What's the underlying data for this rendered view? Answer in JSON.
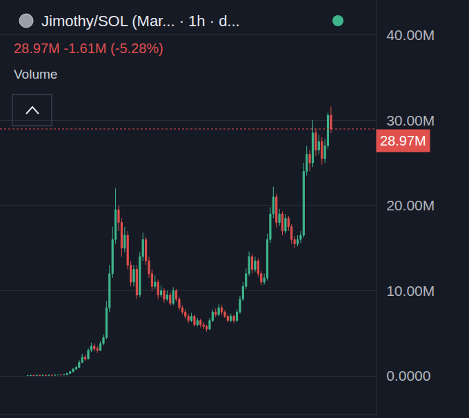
{
  "chart_data": {
    "type": "candlestick",
    "title": "Jimothy/SOL (Mar... · 1h · d...",
    "subtitle": "28.97M -1.61M (-5.28%)",
    "annotations": [
      "Volume"
    ],
    "last_price": {
      "value": 28970000.0,
      "label": "28.97M"
    },
    "color": {
      "up": "#3fb68b",
      "down": "#e0504d"
    },
    "grid": true,
    "tick_labels": "y",
    "x": [
      0,
      1,
      2,
      3,
      4,
      5,
      6,
      7,
      8,
      9,
      10,
      11,
      12,
      13,
      14,
      15,
      16,
      17,
      18,
      19,
      20,
      21,
      22,
      23,
      24,
      25,
      26,
      27,
      28,
      29,
      30,
      31,
      32,
      33,
      34,
      35,
      36,
      37,
      38,
      39,
      40,
      41,
      42,
      43,
      44,
      45,
      46,
      47,
      48,
      49,
      50,
      51,
      52,
      53,
      54,
      55,
      56,
      57,
      58,
      59,
      60,
      61,
      62,
      63,
      64,
      65,
      66,
      67,
      68,
      69,
      70,
      71,
      72,
      73,
      74,
      75,
      76,
      77,
      78,
      79,
      80,
      81,
      82,
      83,
      84,
      85,
      86,
      87,
      88,
      89,
      90,
      91,
      92,
      93,
      94,
      95,
      96,
      97,
      98,
      99,
      100
    ],
    "open": [
      40000.0,
      50000.0,
      60000.0,
      50000.0,
      70000.0,
      60000.0,
      80000.0,
      70000.0,
      90000.0,
      80000.0,
      100000.0,
      120000.0,
      110000.0,
      150000.0,
      300000.0,
      500000.0,
      800000.0,
      1000000.0,
      1600000.0,
      2200000.0,
      2000000.0,
      3000000.0,
      3500000.0,
      3200000.0,
      3000000.0,
      3800000.0,
      4500000.0,
      8000000.0,
      12000000.0,
      16000000.0,
      19500000.0,
      18000000.0,
      15000000.0,
      16500000.0,
      13000000.0,
      11000000.0,
      12500000.0,
      9500000.0,
      14000000.0,
      16000000.0,
      13500000.0,
      12000000.0,
      10500000.0,
      11000000.0,
      9500000.0,
      10000000.0,
      9000000.0,
      9500000.0,
      8500000.0,
      10000000.0,
      9000000.0,
      8000000.0,
      7500000.0,
      7000000.0,
      6500000.0,
      7000000.0,
      6000000.0,
      6500000.0,
      6000000.0,
      5800000.0,
      5500000.0,
      6500000.0,
      7500000.0,
      7200000.0,
      8000000.0,
      7500000.0,
      7000000.0,
      6500000.0,
      7000000.0,
      6500000.0,
      7500000.0,
      9000000.0,
      10500000.0,
      12000000.0,
      14000000.0,
      12500000.0,
      13500000.0,
      12000000.0,
      11000000.0,
      11500000.0,
      16000000.0,
      19000000.0,
      21000000.0,
      18000000.0,
      19000000.0,
      17000000.0,
      18500000.0,
      17500000.0,
      16000000.0,
      15500000.0,
      16000000.0,
      16500000.0,
      24000000.0,
      26000000.0,
      25000000.0,
      28500000.0,
      26500000.0,
      27500000.0,
      25500000.0,
      27000000.0,
      30580000.0
    ],
    "high": [
      60000.0,
      70000.0,
      70000.0,
      80000.0,
      80000.0,
      90000.0,
      90000.0,
      100000.0,
      100000.0,
      110000.0,
      130000.0,
      140000.0,
      170000.0,
      350000.0,
      600000.0,
      900000.0,
      1200000.0,
      1900000.0,
      2600000.0,
      2500000.0,
      3300000.0,
      3900000.0,
      3800000.0,
      3500000.0,
      4100000.0,
      4900000.0,
      8800000.0,
      13000000.0,
      17500000.0,
      22000000.0,
      20000000.0,
      18500000.0,
      17500000.0,
      17000000.0,
      13500000.0,
      13000000.0,
      13000000.0,
      14500000.0,
      16800000.0,
      16300000.0,
      14000000.0,
      12500000.0,
      11800000.0,
      11300000.0,
      10600000.0,
      10300000.0,
      10000000.0,
      9800000.0,
      10400000.0,
      10200000.0,
      9300000.0,
      8300000.0,
      7800000.0,
      7300000.0,
      7400000.0,
      7200000.0,
      6800000.0,
      6700000.0,
      6300000.0,
      6000000.0,
      6800000.0,
      7800000.0,
      7900000.0,
      8400000.0,
      8300000.0,
      7700000.0,
      7200000.0,
      7300000.0,
      7200000.0,
      7800000.0,
      9400000.0,
      11000000.0,
      12600000.0,
      14600000.0,
      14300000.0,
      14000000.0,
      13800000.0,
      12300000.0,
      12000000.0,
      16700000.0,
      19800000.0,
      22200000.0,
      21400000.0,
      19600000.0,
      19300000.0,
      19000000.0,
      18800000.0,
      17800000.0,
      16400000.0,
      16500000.0,
      17000000.0,
      25000000.0,
      27000000.0,
      26500000.0,
      30000000.0,
      29000000.0,
      28300000.0,
      28000000.0,
      27800000.0,
      30900000.0,
      31600000.0
    ],
    "low": [
      30000.0,
      40000.0,
      40000.0,
      50000.0,
      50000.0,
      60000.0,
      60000.0,
      70000.0,
      70000.0,
      80000.0,
      90000.0,
      100000.0,
      100000.0,
      140000.0,
      280000.0,
      450000.0,
      700000.0,
      900000.0,
      1500000.0,
      1800000.0,
      1900000.0,
      2800000.0,
      2900000.0,
      2700000.0,
      2900000.0,
      3600000.0,
      4300000.0,
      7500000.0,
      11500000.0,
      15500000.0,
      17000000.0,
      14000000.0,
      14500000.0,
      12500000.0,
      10500000.0,
      10500000.0,
      9000000.0,
      9200000.0,
      13500000.0,
      13000000.0,
      11500000.0,
      10000000.0,
      10200000.0,
      9000000.0,
      9200000.0,
      8600000.0,
      8800000.0,
      8200000.0,
      8300000.0,
      8700000.0,
      7700000.0,
      7200000.0,
      6700000.0,
      6200000.0,
      6300000.0,
      5800000.0,
      5800000.0,
      5700000.0,
      5500000.0,
      5200000.0,
      5400000.0,
      6300000.0,
      6900000.0,
      7000000.0,
      7200000.0,
      6800000.0,
      6300000.0,
      6300000.0,
      6200000.0,
      6300000.0,
      7300000.0,
      8800000.0,
      10200000.0,
      11700000.0,
      12000000.0,
      12200000.0,
      11600000.0,
      10600000.0,
      10700000.0,
      11200000.0,
      15600000.0,
      18500000.0,
      17400000.0,
      17600000.0,
      16500000.0,
      16700000.0,
      17000000.0,
      15500000.0,
      15000000.0,
      15200000.0,
      15600000.0,
      16200000.0,
      23500000.0,
      24000000.0,
      24500000.0,
      25800000.0,
      26000000.0,
      24800000.0,
      25000000.0,
      26600000.0,
      28500000.0
    ],
    "close": [
      50000.0,
      60000.0,
      50000.0,
      70000.0,
      60000.0,
      80000.0,
      70000.0,
      90000.0,
      80000.0,
      100000.0,
      120000.0,
      110000.0,
      150000.0,
      300000.0,
      500000.0,
      800000.0,
      1000000.0,
      1600000.0,
      2200000.0,
      2000000.0,
      3000000.0,
      3500000.0,
      3200000.0,
      3000000.0,
      3800000.0,
      4500000.0,
      8000000.0,
      12000000.0,
      16000000.0,
      19500000.0,
      18000000.0,
      15000000.0,
      16500000.0,
      13000000.0,
      11000000.0,
      12500000.0,
      9500000.0,
      14000000.0,
      16000000.0,
      13500000.0,
      12000000.0,
      10500000.0,
      11000000.0,
      9500000.0,
      10000000.0,
      9000000.0,
      9500000.0,
      8500000.0,
      10000000.0,
      9000000.0,
      8000000.0,
      7500000.0,
      7000000.0,
      6500000.0,
      7000000.0,
      6000000.0,
      6500000.0,
      6000000.0,
      5800000.0,
      5500000.0,
      6500000.0,
      7500000.0,
      7200000.0,
      8000000.0,
      7500000.0,
      7000000.0,
      6500000.0,
      7000000.0,
      6500000.0,
      7500000.0,
      9000000.0,
      10500000.0,
      12000000.0,
      14000000.0,
      12500000.0,
      13500000.0,
      12000000.0,
      11000000.0,
      11500000.0,
      16000000.0,
      19000000.0,
      21000000.0,
      18000000.0,
      19000000.0,
      17000000.0,
      18500000.0,
      17500000.0,
      16000000.0,
      15500000.0,
      16000000.0,
      16500000.0,
      24000000.0,
      26000000.0,
      25000000.0,
      28500000.0,
      26500000.0,
      27500000.0,
      25500000.0,
      27000000.0,
      30580000.0,
      28970000.0
    ],
    "xlim": [
      -9.1,
      114.8
    ],
    "ylim": [
      -4450000.0,
      44100000.0
    ],
    "yticks": [
      {
        "value": 0,
        "label": "0.0000"
      },
      {
        "value": 10000000.0,
        "label": "10.00M"
      },
      {
        "value": 20000000.0,
        "label": "20.00M"
      },
      {
        "value": 30000000.0,
        "label": "30.00M"
      },
      {
        "value": 40000000.0,
        "label": "40.00M"
      }
    ]
  }
}
